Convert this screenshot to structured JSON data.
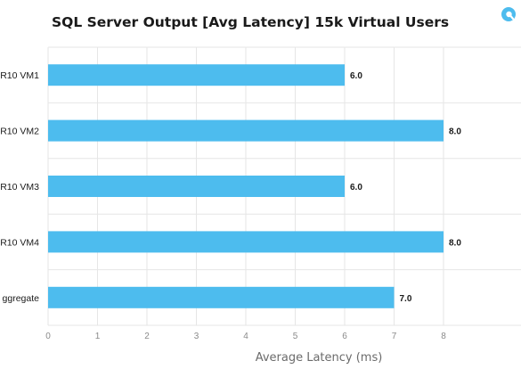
{
  "colors": {
    "bar": "#4dbcee",
    "grid": "#e6e6e6",
    "logo": "#4dbcee"
  },
  "logo": {
    "icon": "droplet-logo-icon"
  },
  "chart_data": {
    "type": "bar",
    "orientation": "horizontal",
    "title": "SQL Server Output [Avg Latency] 15k Virtual Users",
    "xlabel": "Average Latency (ms)",
    "ylabel": "",
    "categories": [
      "R10 VM1",
      "R10 VM2",
      "R10 VM3",
      "R10 VM4",
      "ggregate"
    ],
    "values": [
      6.0,
      8.0,
      6.0,
      8.0,
      7.0
    ],
    "value_labels": [
      "6.0",
      "8.0",
      "6.0",
      "8.0",
      "7.0"
    ],
    "xlim": [
      0,
      8.5
    ],
    "xticks": [
      "0",
      "1",
      "2",
      "3",
      "4",
      "5",
      "6",
      "7",
      "8"
    ],
    "grid": true,
    "legend": "none"
  }
}
